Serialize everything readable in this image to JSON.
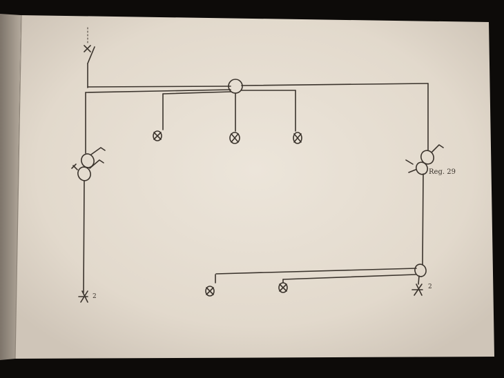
{
  "diagram": {
    "annotation_label": "Reg. 29",
    "terminal_left_label": "2",
    "terminal_right_label": "2",
    "colors": {
      "background": "#0d0b09",
      "paper": "#e6ded2",
      "paper_shadow": "#a79d91",
      "ink": "#3a332c"
    }
  }
}
